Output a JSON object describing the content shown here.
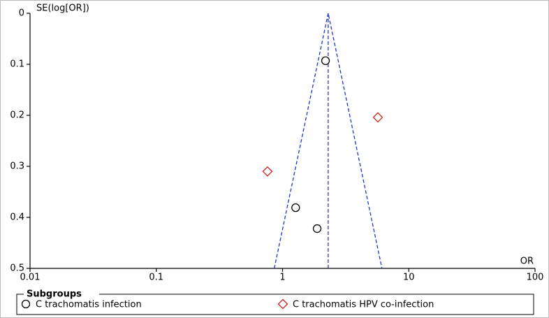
{
  "chart_data": {
    "type": "scatter",
    "x_label": "OR",
    "y_label": "SE(log[OR])",
    "xscale": "log",
    "xlim": [
      0.01,
      100
    ],
    "xticks": [
      0.01,
      0.1,
      1,
      10,
      100
    ],
    "ylim": [
      0.5,
      0
    ],
    "yticks": [
      0,
      0.1,
      0.2,
      0.3,
      0.4,
      0.5
    ],
    "legend_title": "Subgroups",
    "series": [
      {
        "name": "C trachomatis infection",
        "marker": "circle",
        "color": "#000000",
        "x": [
          2.19,
          1.27,
          1.88
        ],
        "y": [
          0.093,
          0.381,
          0.422
        ]
      },
      {
        "name": "C trachomatis HPV co-infection",
        "marker": "diamond",
        "color": "#cc2222",
        "x": [
          5.69,
          0.76
        ],
        "y": [
          0.204,
          0.31
        ]
      }
    ],
    "pooled": 2.3,
    "funnel": {
      "x": [
        0.86,
        2.3,
        6.13
      ],
      "y": [
        0.5,
        0,
        0.5
      ],
      "color": "#2233cc"
    }
  }
}
